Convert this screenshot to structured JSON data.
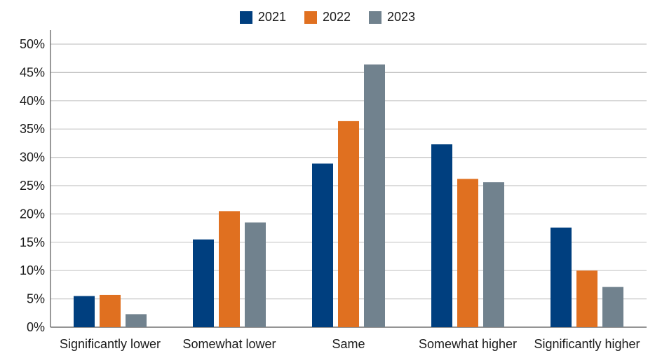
{
  "chart_data": {
    "type": "bar",
    "title": "",
    "xlabel": "",
    "ylabel": "",
    "categories": [
      "Significantly lower",
      "Somewhat lower",
      "Same",
      "Somewhat higher",
      "Significantly higher"
    ],
    "series": [
      {
        "name": "2021",
        "color": "#003f7f",
        "values": [
          5.5,
          15.5,
          28.9,
          32.3,
          17.6
        ]
      },
      {
        "name": "2022",
        "color": "#e07020",
        "values": [
          5.7,
          20.5,
          36.4,
          26.2,
          10.0
        ]
      },
      {
        "name": "2023",
        "color": "#71828e",
        "values": [
          2.3,
          18.5,
          46.4,
          25.6,
          7.1
        ]
      }
    ],
    "ylim": [
      0,
      50
    ],
    "yticks": [
      "0%",
      "5%",
      "10%",
      "15%",
      "20%",
      "25%",
      "30%",
      "35%",
      "40%",
      "45%",
      "50%"
    ],
    "grid": true,
    "legend_position": "top-center"
  }
}
